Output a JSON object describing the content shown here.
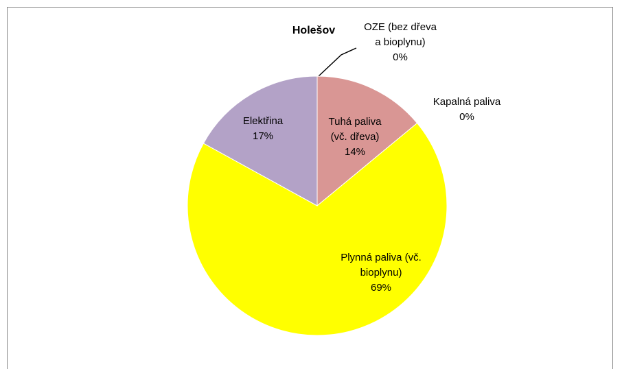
{
  "chart_data": {
    "type": "pie",
    "title": "Holešov",
    "categories": [
      "Tuhá paliva (vč. dřeva)",
      "Kapalná paliva",
      "Plynná paliva (vč. bioplynu)",
      "Elektřina",
      "OZE (bez dřeva a bioplynu)"
    ],
    "values": [
      14,
      0,
      69,
      17,
      0
    ],
    "value_labels": [
      "14%",
      "0%",
      "69%",
      "17%",
      "0%"
    ],
    "colors": [
      "#d99694",
      "#95b3d7",
      "#ffff00",
      "#b3a2c7",
      "#c3d69b"
    ]
  }
}
